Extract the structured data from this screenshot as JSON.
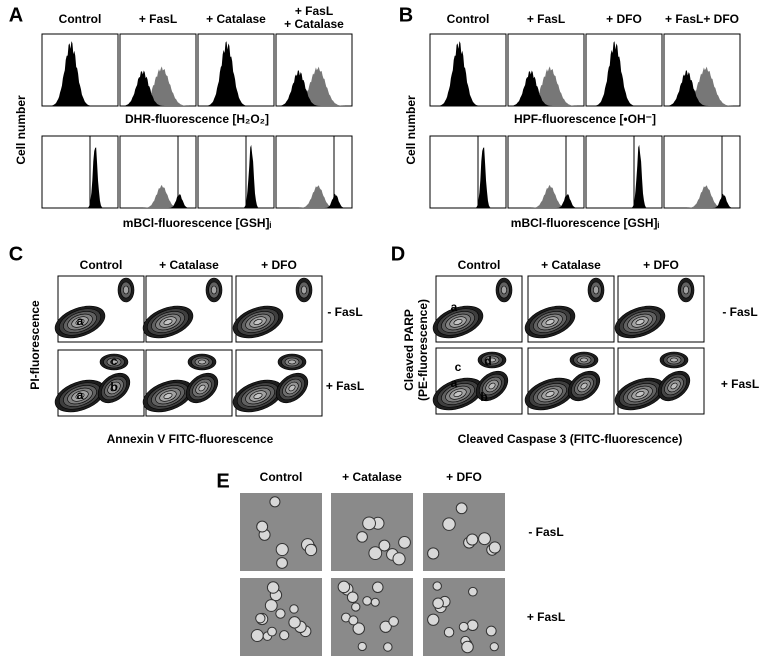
{
  "panels": [
    {
      "label": "A",
      "columns": [
        "Control",
        "+ FasL",
        "+ Catalase",
        [
          "+ FasL",
          "+ Catalase"
        ]
      ],
      "x_labels": [
        "DHR-fluorescence [H₂O₂]",
        "mBCl-fluorescence [GSH]ᵢ"
      ],
      "y_label": "Cell number"
    },
    {
      "label": "B",
      "columns": [
        "Control",
        "+ FasL",
        "+ DFO",
        "+ FasL+ DFO"
      ],
      "x_labels": [
        "HPF-fluorescence [•OH⁻]",
        "mBCl-fluorescence [GSH]ᵢ"
      ],
      "y_label": "Cell number"
    },
    {
      "label": "C",
      "columns": [
        "Control",
        "+ Catalase",
        "+ DFO"
      ],
      "row_labels": [
        "- FasL",
        "+ FasL"
      ],
      "y_label": "PI-fluorescence",
      "x_label": "Annexin V FITC-fluorescence",
      "annotations": [
        "a",
        "a",
        "b",
        "c"
      ]
    },
    {
      "label": "D",
      "columns": [
        "Control",
        "+ Catalase",
        "+ DFO"
      ],
      "row_labels": [
        "- FasL",
        "+ FasL"
      ],
      "y_label": [
        "Cleaved PARP",
        "(PE-fluorescence)"
      ],
      "x_label": "Cleaved Caspase 3 (FITC-fluorescence)",
      "annotations": [
        "a",
        "a",
        "b",
        "c",
        "d"
      ]
    },
    {
      "label": "E",
      "columns": [
        "Control",
        "+ Catalase",
        "+ DFO"
      ],
      "row_labels": [
        "- FasL",
        "+ FasL"
      ]
    }
  ]
}
